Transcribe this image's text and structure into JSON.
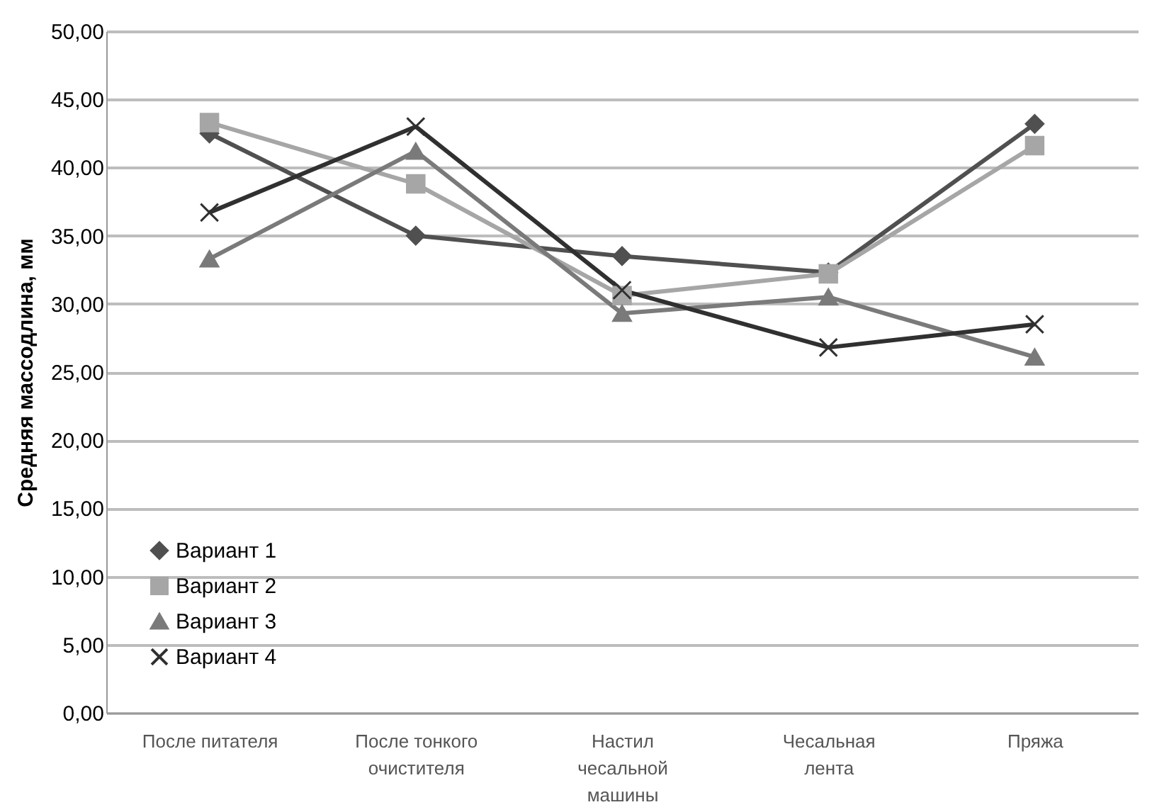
{
  "chart_data": {
    "type": "line",
    "ylabel": "Средняя массодлина, мм",
    "categories": [
      "После питателя",
      "После тонкого\nочистителя",
      "Настил\nчесальной\nмашины",
      "Чесальная\nлента",
      "Пряжа"
    ],
    "series": [
      {
        "name": "Вариант 1",
        "color": "#505050",
        "marker": "diamond",
        "values": [
          42.5,
          35.0,
          33.5,
          32.3,
          43.2
        ]
      },
      {
        "name": "Вариант 2",
        "color": "#a6a6a6",
        "marker": "square",
        "values": [
          43.3,
          38.8,
          30.6,
          32.2,
          41.6
        ]
      },
      {
        "name": "Вариант 3",
        "color": "#7a7a7a",
        "marker": "triangle",
        "values": [
          33.3,
          41.2,
          29.3,
          30.5,
          26.1
        ]
      },
      {
        "name": "Вариант 4",
        "color": "#303030",
        "marker": "cross",
        "values": [
          36.7,
          43.0,
          31.0,
          26.8,
          28.5
        ]
      }
    ],
    "ylim": [
      0,
      50
    ],
    "yticks": [
      {
        "value": 0,
        "label": "0,00"
      },
      {
        "value": 5,
        "label": "5,00"
      },
      {
        "value": 10,
        "label": "10,00"
      },
      {
        "value": 15,
        "label": "15,00"
      },
      {
        "value": 20,
        "label": "20,00"
      },
      {
        "value": 25,
        "label": "25,00"
      },
      {
        "value": 30,
        "label": "30,00"
      },
      {
        "value": 35,
        "label": "35,00"
      },
      {
        "value": 40,
        "label": "40,00"
      },
      {
        "value": 45,
        "label": "45,00"
      },
      {
        "value": 50,
        "label": "50,00"
      }
    ],
    "grid": "y",
    "legend": "bottom left",
    "line_style": "solid"
  }
}
